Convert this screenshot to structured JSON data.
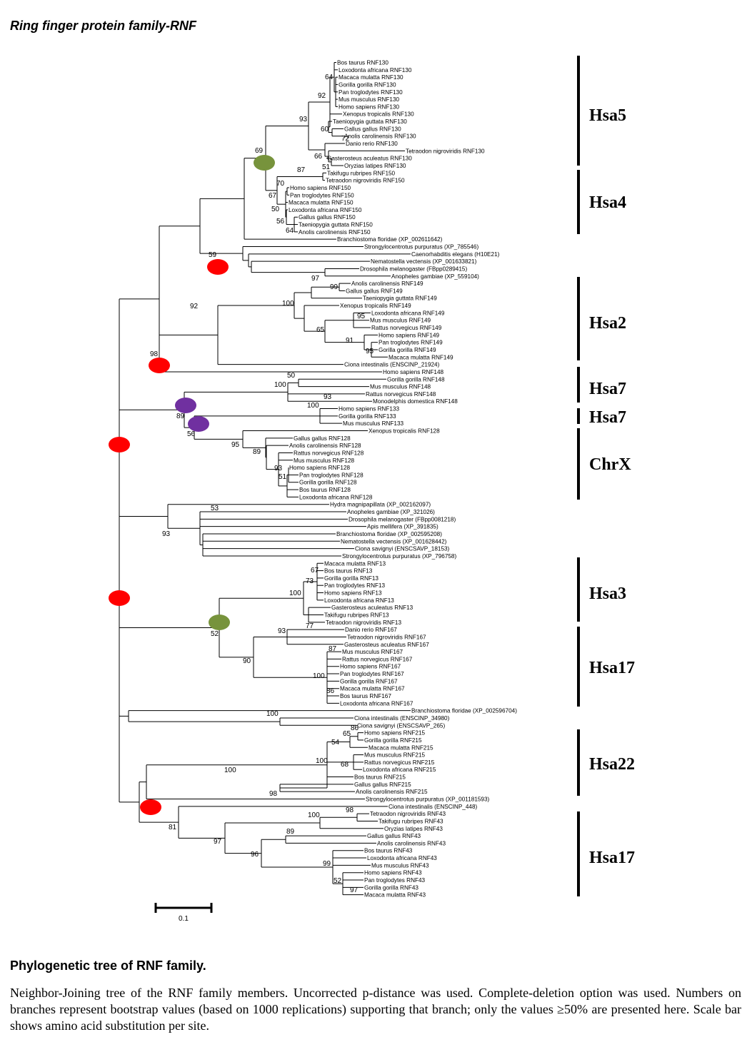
{
  "title": "Ring finger protein family-RNF",
  "scale_label": "0.1",
  "groups": [
    "Hsa5",
    "Hsa4",
    "Hsa2",
    "Hsa7",
    "Hsa7",
    "ChrX",
    "Hsa3",
    "Hsa17",
    "Hsa22",
    "Hsa17"
  ],
  "leaves": [
    "Bos taurus RNF130",
    "Loxodonta africana RNF130",
    "Macaca mulatta RNF130",
    "Gorilla gorilla RNF130",
    "Pan troglodytes RNF130",
    "Mus musculus RNF130",
    "Homo sapiens RNF130",
    "Xenopus tropicalis RNF130",
    "Taeniopygia guttata RNF130",
    "Gallus gallus RNF130",
    "Anolis carolinensis RNF130",
    "Danio rerio RNF130",
    "Tetraodon nigroviridis RNF130",
    "Gasterosteus aculeatus RNF130",
    "Oryzias latipes RNF130",
    "Takifugu rubripes RNF150",
    "Tetraodon nigroviridis RNF150",
    "Homo sapiens RNF150",
    "Pan troglodytes RNF150",
    "Macaca mulatta RNF150",
    "Loxodonta africana RNF150",
    "Gallus gallus RNF150",
    "Taeniopygia guttata RNF150",
    "Anolis carolinensis RNF150",
    "Branchiostoma floridae (XP_002611642)",
    "Strongylocentrotus purpuratus (XP_785546)",
    "Caenorhabditis elegans (H10E21)",
    "Nematostella vectensis (XP_001633821)",
    "Drosophila melanogaster (FBpp0289415)",
    "Anopheles gambiae (XP_559104)",
    "Anolis carolinensis RNF149",
    "Gallus gallus RNF149",
    "Taeniopygia guttata RNF149",
    "Xenopus tropicalis RNF149",
    "Loxodonta africana RNF149",
    "Mus musculus RNF149",
    "Rattus norvegicus RNF149",
    "Homo sapiens RNF149",
    "Pan troglodytes RNF149",
    "Gorilla gorilla RNF149",
    "Macaca mulatta RNF149",
    "Ciona intestinalis (ENSCINP_21924)",
    "Homo sapiens RNF148",
    "Gorilla gorilla RNF148",
    "Mus musculus RNF148",
    "Rattus norvegicus RNF148",
    "Monodelphis domestica RNF148",
    "Homo sapiens RNF133",
    "Gorilla gorilla RNF133",
    "Mus musculus RNF133",
    "Xenopus tropicalis RNF128",
    "Gallus gallus RNF128",
    "Anolis carolinensis RNF128",
    "Rattus norvegicus RNF128",
    "Mus musculus RNF128",
    "Homo sapiens RNF128",
    "Pan troglodytes RNF128",
    "Gorilla gorilla RNF128",
    "Bos taurus RNF128",
    "Loxodonta africana RNF128",
    "Hydra magnipapillata (XP_002162097)",
    "Anopheles gambiae (XP_321026)",
    "Drosophila melanogaster (FBpp0081218)",
    "Apis mellifera (XP_391835)",
    "Branchiostoma floridae (XP_002595208)",
    "Nematostella vectensis (XP_001628442)",
    "Ciona savignyi (ENSCSAVP_18153)",
    "Strongylocentrotus purpuratus (XP_796758)",
    "Macaca mulatta RNF13",
    "Bos taurus RNF13",
    "Gorilla gorilla RNF13",
    "Pan troglodytes RNF13",
    "Homo sapiens RNF13",
    "Loxodonta africana RNF13",
    "Gasterosteus aculeatus RNF13",
    "Takifugu rubripes RNF13",
    "Tetraodon nigroviridis RNF13",
    "Danio rerio RNF167",
    "Tetraodon nigroviridis RNF167",
    "Gasterosteus aculeatus RNF167",
    "Mus musculus RNF167",
    "Rattus norvegicus RNF167",
    "Homo sapiens RNF167",
    "Pan troglodytes RNF167",
    "Gorilla gorilla RNF167",
    "Macaca mulatta RNF167",
    "Bos taurus RNF167",
    "Loxodonta africana RNF167",
    "Branchiostoma floridae (XP_002596704)",
    "Ciona intestinalis (ENSCINP_34980)",
    "Ciona savignyi (ENSCSAVP_265)",
    "Homo sapiens RNF215",
    "Gorilla gorilla RNF215",
    "Macaca mulatta RNF215",
    "Mus musculus RNF215",
    "Rattus norvegicus RNF215",
    "Loxodonta africana RNF215",
    "Bos taurus RNF215",
    "Gallus gallus RNF215",
    "Anolis carolinensis RNF215",
    "Strongylocentrotus purpuratus (XP_001181593)",
    "Ciona intestinalis (ENSCINP_448)",
    "Tetraodon nigroviridis RNF43",
    "Takifugu rubripes RNF43",
    "Oryzias latipes RNF43",
    "Gallus gallus RNF43",
    "Anolis carolinensis RNF43",
    "Bos taurus RNF43",
    "Loxodonta africana RNF43",
    "Mus musculus RNF43",
    "Homo sapiens RNF43",
    "Pan troglodytes RNF43",
    "Gorilla gorilla RNF43",
    "Macaca mulatta RNF43"
  ],
  "bootstrap": [
    "64",
    "92",
    "93",
    "60",
    "72",
    "66",
    "51",
    "69",
    "87",
    "70",
    "67",
    "50",
    "56",
    "64",
    "59",
    "97",
    "99",
    "100",
    "95",
    "65",
    "91",
    "95",
    "92",
    "98",
    "50",
    "100",
    "93",
    "100",
    "89",
    "56",
    "95",
    "89",
    "93",
    "51",
    "53",
    "93",
    "67",
    "73",
    "100",
    "77",
    "52",
    "93",
    "87",
    "90",
    "100",
    "86",
    "100",
    "86",
    "65",
    "54",
    "100",
    "68",
    "100",
    "98",
    "81",
    "98",
    "100",
    "89",
    "97",
    "96",
    "99",
    "52",
    "97"
  ],
  "caption": {
    "title": "Phylogenetic tree of RNF family.",
    "text": "Neighbor-Joining tree of the RNF family members. Uncorrected p-distance was used. Complete-deletion option was used. Numbers on branches represent bootstrap values (based on 1000 replications) supporting that branch; only the values ≥50% are presented here. Scale bar shows amino acid substitution per site."
  },
  "colors": {
    "red": "#ff0000",
    "purple": "#7030a0",
    "green": "#77933c"
  }
}
